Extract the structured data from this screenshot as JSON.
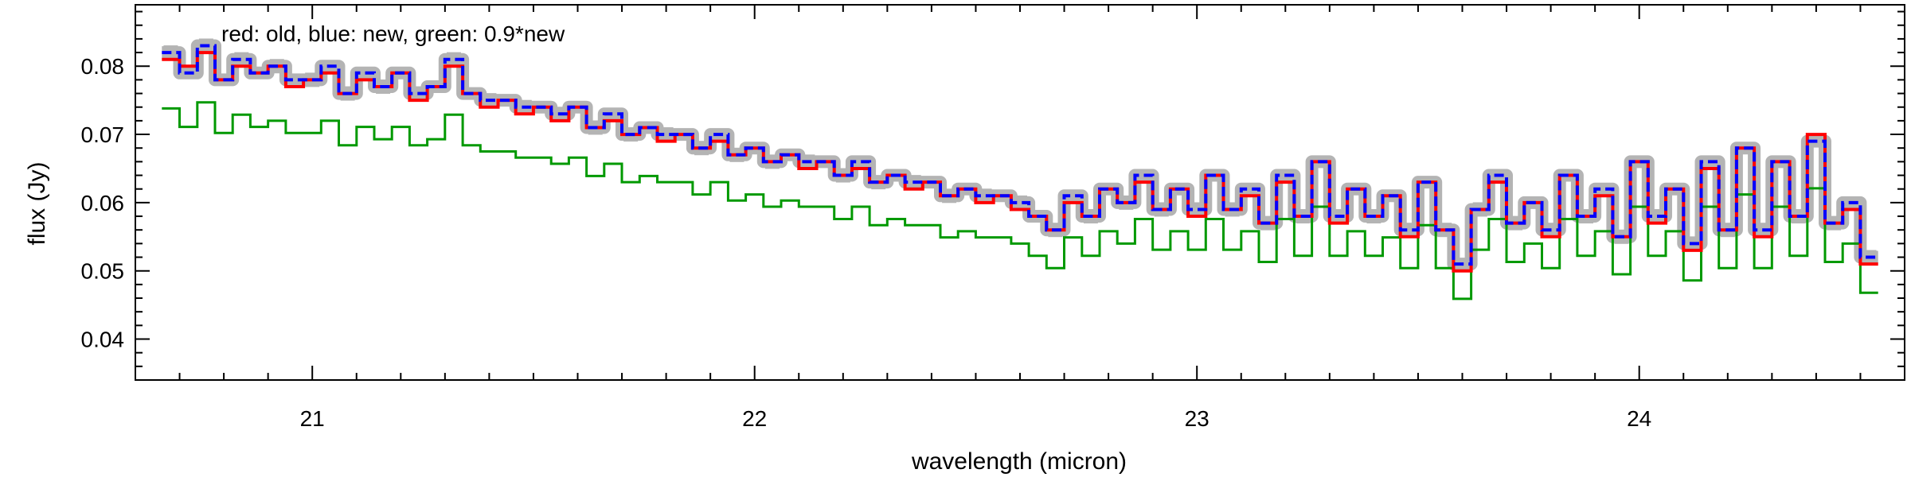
{
  "chart_data": {
    "type": "line",
    "title": "",
    "annotation": "red: old, blue: new, green: 0.9*new",
    "xlabel": "wavelength (micron)",
    "ylabel": "flux (Jy)",
    "xlim": [
      20.6,
      24.6
    ],
    "ylim": [
      0.034,
      0.089
    ],
    "x_major_ticks": [
      21,
      22,
      23,
      24
    ],
    "x_tick_labels": [
      "21",
      "22",
      "23",
      "24"
    ],
    "y_major_ticks": [
      0.04,
      0.05,
      0.06,
      0.07,
      0.08
    ],
    "y_tick_labels": [
      "0.04",
      "0.05",
      "0.06",
      "0.07",
      "0.08"
    ],
    "grid": false,
    "x": [
      20.68,
      20.72,
      20.76,
      20.8,
      20.84,
      20.88,
      20.92,
      20.96,
      21.0,
      21.04,
      21.08,
      21.12,
      21.16,
      21.2,
      21.24,
      21.28,
      21.32,
      21.36,
      21.4,
      21.44,
      21.48,
      21.52,
      21.56,
      21.6,
      21.64,
      21.68,
      21.72,
      21.76,
      21.8,
      21.84,
      21.88,
      21.92,
      21.96,
      22.0,
      22.04,
      22.08,
      22.12,
      22.16,
      22.2,
      22.24,
      22.28,
      22.32,
      22.36,
      22.4,
      22.44,
      22.48,
      22.52,
      22.56,
      22.6,
      22.64,
      22.68,
      22.72,
      22.76,
      22.8,
      22.84,
      22.88,
      22.92,
      22.96,
      23.0,
      23.04,
      23.08,
      23.12,
      23.16,
      23.2,
      23.24,
      23.28,
      23.32,
      23.36,
      23.4,
      23.44,
      23.48,
      23.52,
      23.56,
      23.6,
      23.64,
      23.68,
      23.72,
      23.76,
      23.8,
      23.84,
      23.88,
      23.92,
      23.96,
      24.0,
      24.04,
      24.08,
      24.12,
      24.16,
      24.2,
      24.24,
      24.28,
      24.32,
      24.36,
      24.4,
      24.44,
      24.48,
      24.52
    ],
    "series": [
      {
        "name": "old",
        "color": "#ff0000",
        "style": "solid",
        "values": [
          0.081,
          0.08,
          0.082,
          0.078,
          0.08,
          0.079,
          0.08,
          0.077,
          0.078,
          0.079,
          0.076,
          0.078,
          0.077,
          0.079,
          0.075,
          0.077,
          0.08,
          0.076,
          0.074,
          0.075,
          0.073,
          0.074,
          0.072,
          0.074,
          0.071,
          0.072,
          0.07,
          0.071,
          0.069,
          0.07,
          0.068,
          0.069,
          0.067,
          0.068,
          0.066,
          0.067,
          0.065,
          0.066,
          0.064,
          0.065,
          0.063,
          0.064,
          0.062,
          0.063,
          0.061,
          0.062,
          0.06,
          0.061,
          0.059,
          0.058,
          0.056,
          0.06,
          0.058,
          0.062,
          0.06,
          0.063,
          0.059,
          0.062,
          0.058,
          0.064,
          0.059,
          0.061,
          0.057,
          0.063,
          0.058,
          0.066,
          0.057,
          0.062,
          0.058,
          0.061,
          0.055,
          0.063,
          0.056,
          0.05,
          0.059,
          0.063,
          0.057,
          0.06,
          0.055,
          0.064,
          0.058,
          0.061,
          0.055,
          0.066,
          0.057,
          0.062,
          0.053,
          0.065,
          0.056,
          0.068,
          0.055,
          0.066,
          0.058,
          0.07,
          0.057,
          0.059,
          0.051
        ]
      },
      {
        "name": "new",
        "color": "#0000ff",
        "style": "dashed",
        "values": [
          0.082,
          0.079,
          0.083,
          0.078,
          0.081,
          0.079,
          0.08,
          0.078,
          0.078,
          0.08,
          0.076,
          0.079,
          0.077,
          0.079,
          0.076,
          0.077,
          0.081,
          0.076,
          0.075,
          0.075,
          0.074,
          0.074,
          0.073,
          0.074,
          0.071,
          0.073,
          0.07,
          0.071,
          0.07,
          0.07,
          0.068,
          0.07,
          0.067,
          0.068,
          0.066,
          0.067,
          0.066,
          0.066,
          0.064,
          0.066,
          0.063,
          0.064,
          0.063,
          0.063,
          0.061,
          0.062,
          0.061,
          0.061,
          0.06,
          0.058,
          0.056,
          0.061,
          0.058,
          0.062,
          0.06,
          0.064,
          0.059,
          0.062,
          0.059,
          0.064,
          0.059,
          0.062,
          0.057,
          0.064,
          0.058,
          0.066,
          0.058,
          0.062,
          0.058,
          0.061,
          0.056,
          0.063,
          0.056,
          0.051,
          0.059,
          0.064,
          0.057,
          0.06,
          0.056,
          0.064,
          0.058,
          0.062,
          0.055,
          0.066,
          0.058,
          0.062,
          0.054,
          0.066,
          0.056,
          0.068,
          0.056,
          0.066,
          0.058,
          0.069,
          0.057,
          0.06,
          0.052
        ]
      },
      {
        "name": "0.9*new",
        "color": "#009900",
        "style": "solid-step",
        "values": [
          0.0738,
          0.0711,
          0.0747,
          0.0702,
          0.0729,
          0.0711,
          0.072,
          0.0702,
          0.0702,
          0.072,
          0.0684,
          0.0711,
          0.0693,
          0.0711,
          0.0684,
          0.0693,
          0.0729,
          0.0684,
          0.0675,
          0.0675,
          0.0666,
          0.0666,
          0.0657,
          0.0666,
          0.0639,
          0.0657,
          0.063,
          0.0639,
          0.063,
          0.063,
          0.0612,
          0.063,
          0.0603,
          0.0612,
          0.0594,
          0.0603,
          0.0594,
          0.0594,
          0.0576,
          0.0594,
          0.0567,
          0.0576,
          0.0567,
          0.0567,
          0.0549,
          0.0558,
          0.0549,
          0.0549,
          0.054,
          0.0522,
          0.0504,
          0.0549,
          0.0522,
          0.0558,
          0.054,
          0.0576,
          0.0531,
          0.0558,
          0.0531,
          0.0576,
          0.0531,
          0.0558,
          0.0513,
          0.0576,
          0.0522,
          0.0594,
          0.0522,
          0.0558,
          0.0522,
          0.0549,
          0.0504,
          0.0567,
          0.0504,
          0.0459,
          0.0531,
          0.0576,
          0.0513,
          0.054,
          0.0504,
          0.0576,
          0.0522,
          0.0558,
          0.0495,
          0.0594,
          0.0522,
          0.0558,
          0.0486,
          0.0594,
          0.0504,
          0.0612,
          0.0504,
          0.0594,
          0.0522,
          0.0621,
          0.0513,
          0.054,
          0.0468
        ]
      }
    ],
    "error_band_color": "#b4b4b4"
  }
}
